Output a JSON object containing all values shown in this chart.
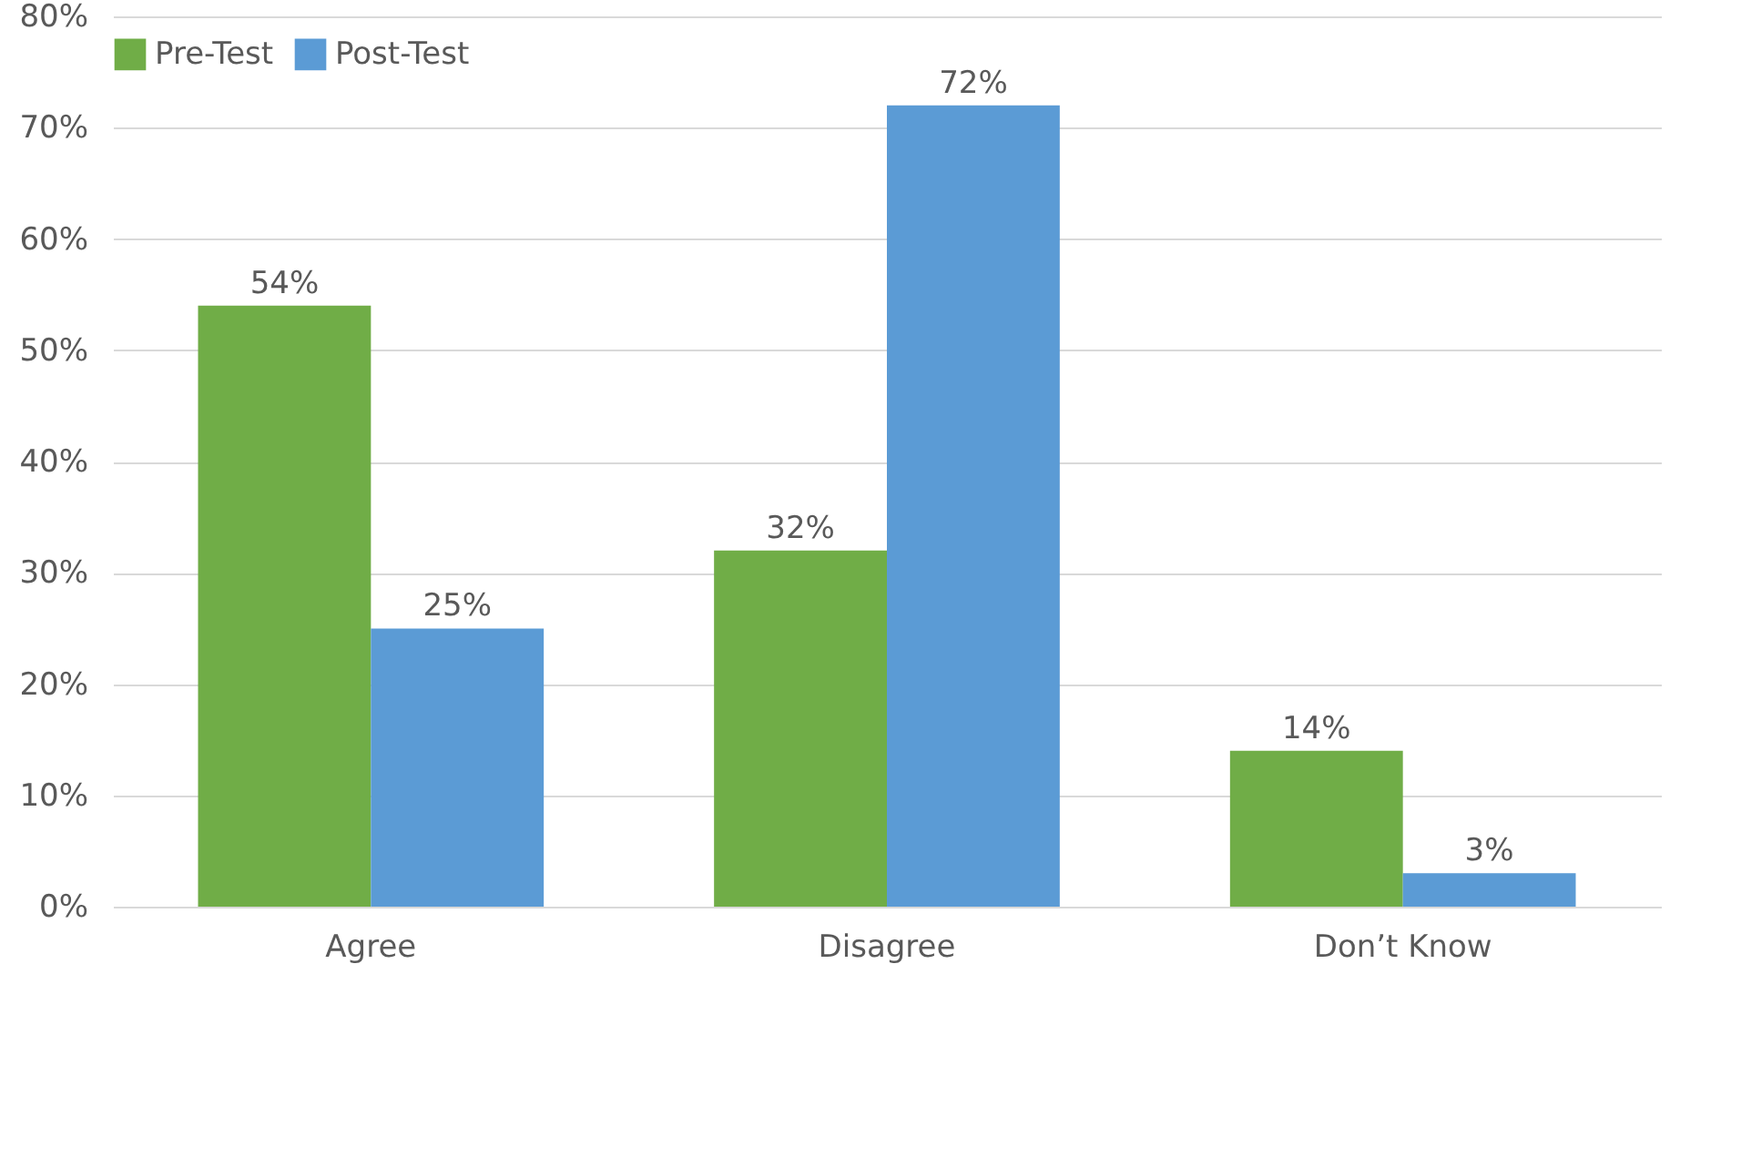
{
  "chart_data": {
    "type": "bar",
    "categories": [
      "Agree",
      "Disagree",
      "Don’t Know"
    ],
    "series": [
      {
        "name": "Pre-Test",
        "color": "#70ad47",
        "values": [
          54,
          32,
          14
        ],
        "value_labels": [
          "54%",
          "32%",
          "14%"
        ]
      },
      {
        "name": "Post-Test",
        "color": "#5b9bd5",
        "values": [
          25,
          72,
          3
        ],
        "value_labels": [
          "25%",
          "72%",
          "3%"
        ]
      }
    ],
    "ylim": [
      0,
      80
    ],
    "yticks": [
      {
        "value": 0,
        "label": "0%"
      },
      {
        "value": 10,
        "label": "10%"
      },
      {
        "value": 20,
        "label": "20%"
      },
      {
        "value": 30,
        "label": "30%"
      },
      {
        "value": 40,
        "label": "40%"
      },
      {
        "value": 50,
        "label": "50%"
      },
      {
        "value": 60,
        "label": "60%"
      },
      {
        "value": 70,
        "label": "70%"
      },
      {
        "value": 80,
        "label": "80%"
      }
    ],
    "grid": "y",
    "legend": "top"
  }
}
